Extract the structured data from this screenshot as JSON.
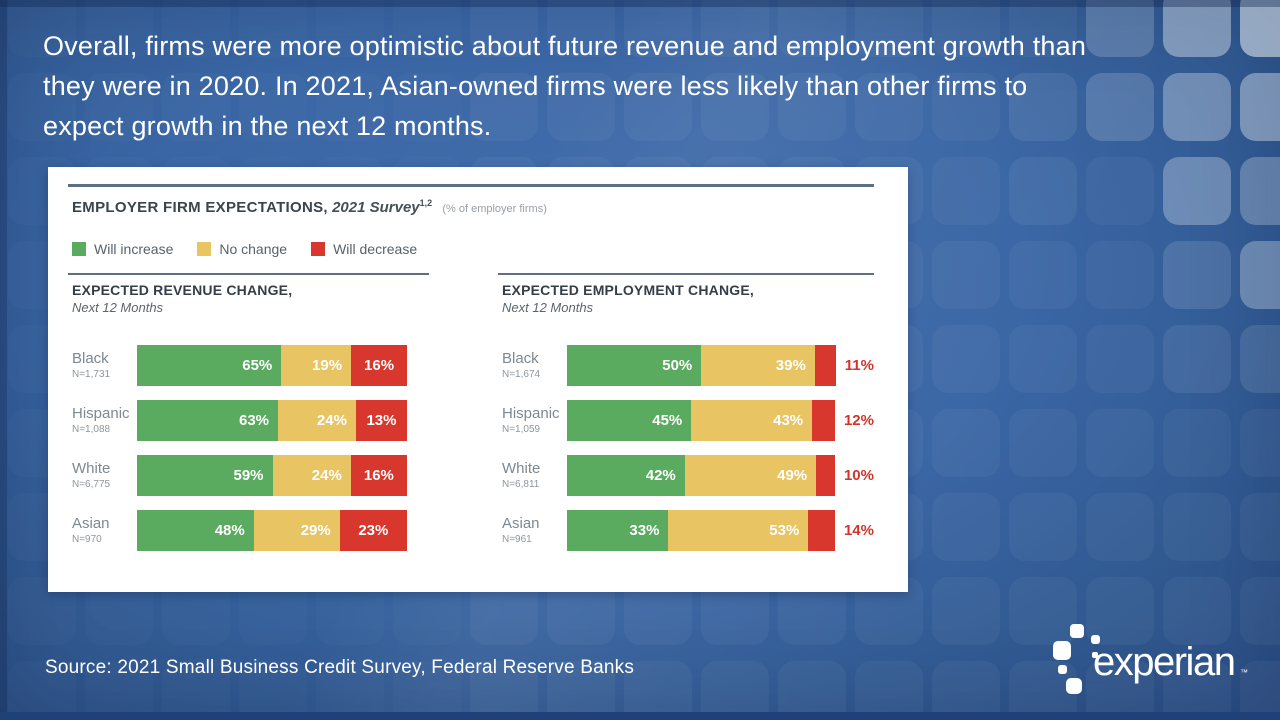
{
  "slide": {
    "title_lines": [
      "Overall, firms were more optimistic about future revenue and employment growth than",
      "they were in 2020. In 2021, Asian-owned firms were less likely than other firms to",
      "expect growth in the next 12 months."
    ],
    "source": "Source: 2021 Small Business Credit Survey, Federal Reserve Banks",
    "logo": {
      "text": "experian",
      "tm": "™",
      "mark": "experian-mark-squares"
    }
  },
  "chart": {
    "title_bold": "EMPLOYER FIRM EXPECTATIONS,",
    "title_italic": "2021 Survey",
    "title_sup": "1,2",
    "title_note": "(% of employer firms)",
    "colors": {
      "increase": "#5aaa5f",
      "nochange": "#e9c462",
      "decrease": "#d8372d",
      "decrease_label_text": "#d2342c",
      "rule": "#5d6f80",
      "card_bg": "#ffffff",
      "background_blue": "#3a66a5"
    },
    "legend": [
      {
        "label": "Will increase",
        "color_key": "increase"
      },
      {
        "label": "No change",
        "color_key": "nochange"
      },
      {
        "label": "Will decrease",
        "color_key": "decrease"
      }
    ],
    "panels": [
      {
        "heading": "EXPECTED REVENUE CHANGE,",
        "subheading": "Next 12 Months",
        "red_labels_outside": false,
        "rows": [
          {
            "group": "Black",
            "n": "N=1,731",
            "values": [
              65,
              19,
              16
            ],
            "labels": [
              "65%",
              "19%",
              "16%"
            ]
          },
          {
            "group": "Hispanic",
            "n": "N=1,088",
            "values": [
              63,
              24,
              13
            ],
            "labels": [
              "63%",
              "24%",
              "13%"
            ]
          },
          {
            "group": "White",
            "n": "N=6,775",
            "values": [
              59,
              24,
              16
            ],
            "labels": [
              "59%",
              "24%",
              "16%"
            ]
          },
          {
            "group": "Asian",
            "n": "N=970",
            "values": [
              48,
              29,
              23
            ],
            "labels": [
              "48%",
              "29%",
              "23%"
            ]
          }
        ]
      },
      {
        "heading": "EXPECTED EMPLOYMENT CHANGE,",
        "subheading": "Next 12 Months",
        "red_labels_outside": true,
        "rows": [
          {
            "group": "Black",
            "n": "N=1,674",
            "values": [
              50,
              39,
              11
            ],
            "labels": [
              "50%",
              "39%",
              "11%"
            ]
          },
          {
            "group": "Hispanic",
            "n": "N=1,059",
            "values": [
              45,
              43,
              12
            ],
            "labels": [
              "45%",
              "43%",
              "12%"
            ]
          },
          {
            "group": "White",
            "n": "N=6,811",
            "values": [
              42,
              49,
              10
            ],
            "labels": [
              "42%",
              "49%",
              "10%"
            ]
          },
          {
            "group": "Asian",
            "n": "N=961",
            "values": [
              33,
              53,
              14
            ],
            "labels": [
              "33%",
              "53%",
              "14%"
            ]
          }
        ]
      }
    ]
  },
  "chart_data": [
    {
      "type": "bar",
      "orientation": "horizontal-stacked",
      "title": "EXPECTED REVENUE CHANGE, Next 12 Months",
      "unit": "% of employer firms",
      "categories": [
        "Black (N=1,731)",
        "Hispanic (N=1,088)",
        "White (N=6,775)",
        "Asian (N=970)"
      ],
      "series": [
        {
          "name": "Will increase",
          "values": [
            65,
            63,
            59,
            48
          ],
          "color": "#5aaa5f"
        },
        {
          "name": "No change",
          "values": [
            19,
            24,
            24,
            29
          ],
          "color": "#e9c462"
        },
        {
          "name": "Will decrease",
          "values": [
            16,
            13,
            16,
            23
          ],
          "color": "#d8372d"
        }
      ],
      "xlim": [
        0,
        100
      ],
      "legend_position": "top",
      "grid": false
    },
    {
      "type": "bar",
      "orientation": "horizontal-stacked",
      "title": "EXPECTED EMPLOYMENT CHANGE, Next 12 Months",
      "unit": "% of employer firms",
      "categories": [
        "Black (N=1,674)",
        "Hispanic (N=1,059)",
        "White (N=6,811)",
        "Asian (N=961)"
      ],
      "series": [
        {
          "name": "Will increase",
          "values": [
            50,
            45,
            42,
            33
          ],
          "color": "#5aaa5f"
        },
        {
          "name": "No change",
          "values": [
            39,
            43,
            49,
            53
          ],
          "color": "#e9c462"
        },
        {
          "name": "Will decrease",
          "values": [
            11,
            12,
            10,
            14
          ],
          "color": "#d8372d"
        }
      ],
      "xlim": [
        0,
        100
      ],
      "legend_position": "top",
      "grid": false
    }
  ]
}
